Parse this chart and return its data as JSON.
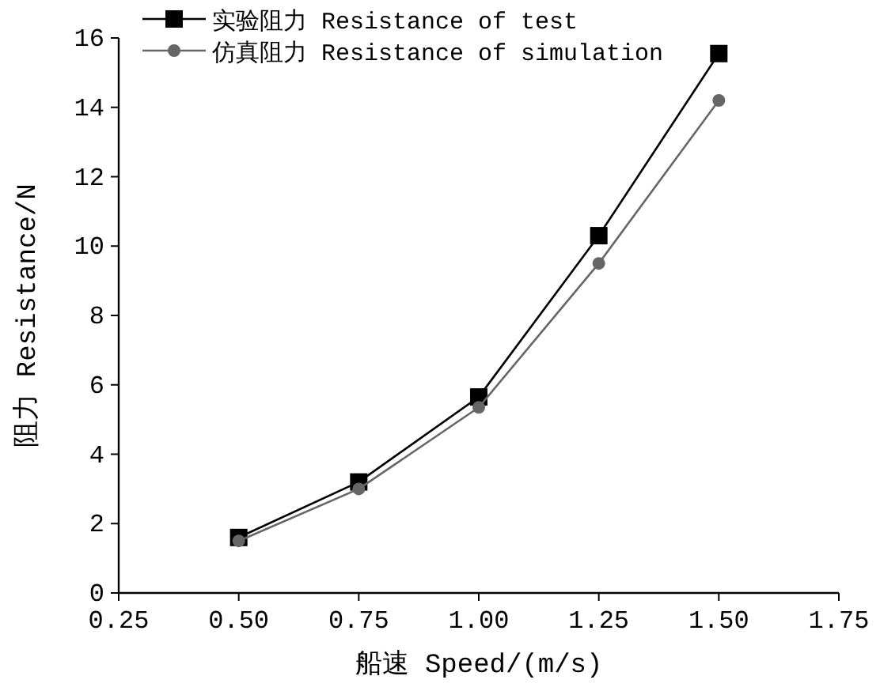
{
  "chart_data": {
    "type": "line",
    "xlabel": "船速 Speed/(m/s)",
    "ylabel": "阻力 Resistance/N",
    "x": [
      0.5,
      0.75,
      1.0,
      1.25,
      1.5
    ],
    "series": [
      {
        "name": "实验阻力 Resistance of test",
        "color": "#000000",
        "marker": "square",
        "values": [
          1.6,
          3.2,
          5.65,
          10.3,
          15.55
        ]
      },
      {
        "name": "仿真阻力 Resistance of simulation",
        "color": "#666666",
        "marker": "circle",
        "values": [
          1.5,
          3.0,
          5.35,
          9.5,
          14.2
        ]
      }
    ],
    "xlim": [
      0.25,
      1.75
    ],
    "xticks": [
      {
        "value": 0.25,
        "label": "0.25"
      },
      {
        "value": 0.5,
        "label": "0.50"
      },
      {
        "value": 0.75,
        "label": "0.75"
      },
      {
        "value": 1.0,
        "label": "1.00"
      },
      {
        "value": 1.25,
        "label": "1.25"
      },
      {
        "value": 1.5,
        "label": "1.50"
      },
      {
        "value": 1.75,
        "label": "1.75"
      }
    ],
    "ylim": [
      0,
      16
    ],
    "yticks": [
      0,
      2,
      4,
      6,
      8,
      10,
      12,
      14,
      16
    ],
    "grid": false,
    "legend": "top left",
    "line_style": "solid"
  }
}
